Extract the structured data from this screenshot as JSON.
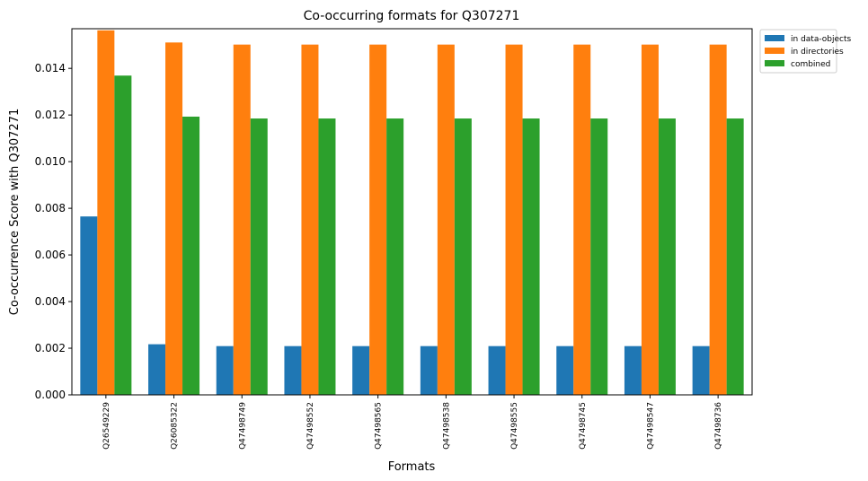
{
  "chart_data": {
    "type": "bar",
    "title": "Co-occurring formats for Q307271",
    "xlabel": "Formats",
    "ylabel": "Co-occurrence Score with Q307271",
    "ylim": [
      0,
      0.0157
    ],
    "yticks": [
      "0.000",
      "0.002",
      "0.004",
      "0.006",
      "0.008",
      "0.010",
      "0.012",
      "0.014"
    ],
    "categories": [
      "Q26549229",
      "Q26085322",
      "Q47498749",
      "Q47498552",
      "Q47498565",
      "Q47498538",
      "Q47498555",
      "Q47498745",
      "Q47498547",
      "Q47498736"
    ],
    "series": [
      {
        "name": "in data-objects",
        "color": "#1f77b4",
        "values": [
          0.00765,
          0.00217,
          0.00209,
          0.00209,
          0.00209,
          0.00209,
          0.00209,
          0.00209,
          0.00209,
          0.00209
        ]
      },
      {
        "name": "in directories",
        "color": "#ff7f0e",
        "values": [
          0.01563,
          0.01511,
          0.01502,
          0.01502,
          0.01502,
          0.01502,
          0.01502,
          0.01502,
          0.01502,
          0.01502
        ]
      },
      {
        "name": "combined",
        "color": "#2ca02c",
        "values": [
          0.01369,
          0.01193,
          0.01185,
          0.01185,
          0.01185,
          0.01185,
          0.01185,
          0.01185,
          0.01185,
          0.01185
        ]
      }
    ],
    "legend_position": "outside top-right",
    "grid": false
  }
}
